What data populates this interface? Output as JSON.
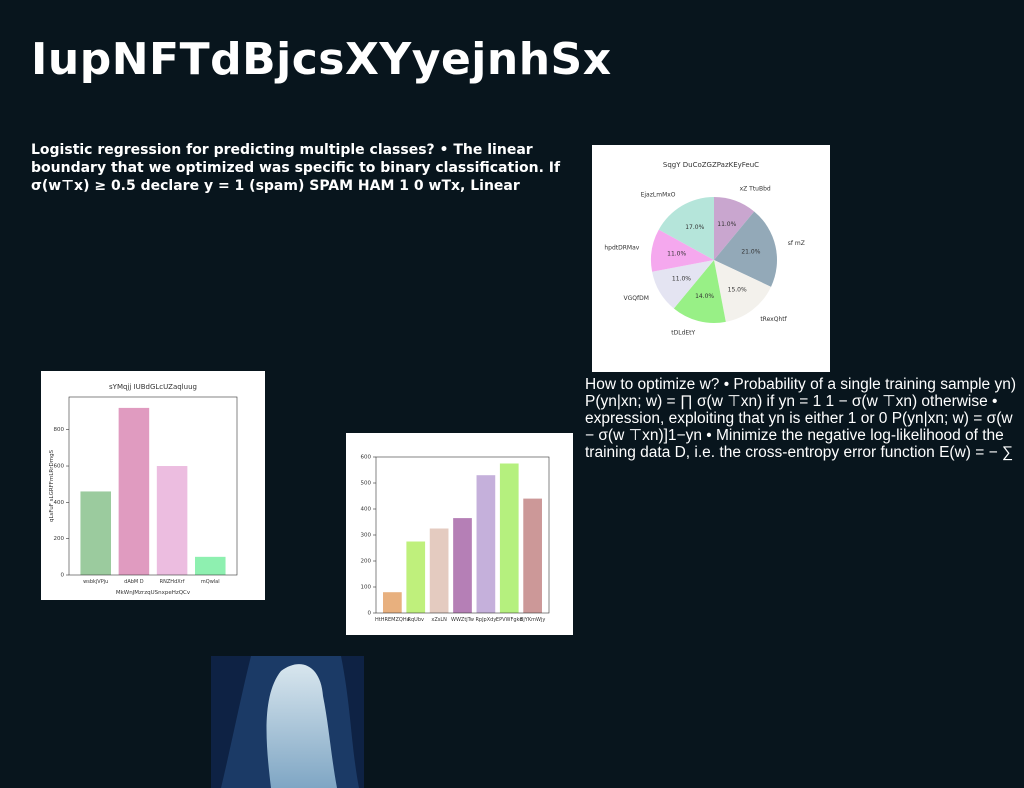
{
  "header": {
    "title": "IupNFTdBjcsXYyejnhSx"
  },
  "text": [
    "Logistic regression for predicting multiple classes? • The linear boundary that we optimized was specific to binary classification. If σ(w⊤x) ≥ 0.5 declare y = 1 (spam) SPAM HAM 1 0 wTx, Linear",
    "How to optimize w? • Probability of a single training sample yn) P(yn|xn; w) = ∏ σ(w ⊤xn) if yn = 1 1 − σ(w ⊤xn) otherwise • expression, exploiting that yn is either 1 or 0 P(yn|xn; w) = σ(w − σ(w ⊤xn)]1−yn • Minimize the negative log-likelihood of the training data D, i.e. the cross-entropy error function E(w) = − ∑"
  ],
  "chart_data": [
    {
      "type": "pie",
      "title": "SqgY DuCoZGZPazKEyFeuC",
      "categories": [
        "xZ TtuBbd",
        "sf mZ",
        "tRexQhtf",
        "tDLdEtY",
        "VGQfDM",
        "hpdtDRMav",
        "EjazLmMxO"
      ],
      "values": [
        11.0,
        21.0,
        15.0,
        14.0,
        11.0,
        11.0,
        17.0
      ],
      "value_labels": [
        "11.0%",
        "21.0%",
        "15.0%",
        "14.0%",
        "11.0%",
        "11.0%",
        "17.0%"
      ],
      "colors": [
        "#c9a6cf",
        "#93a9b8",
        "#f3f1ec",
        "#98f086",
        "#e4e4f2",
        "#f5a8ee",
        "#b5e5da"
      ]
    },
    {
      "type": "bar",
      "title": "sYMqjj IUBdGLcUZaqluug",
      "x_label": "MkWnJMzrzqUSnxpeHzQCv",
      "y_label": "qLsFuF sLGRFFmLRrDmgS",
      "categories": [
        "wsbkjVPju",
        "dAbM D",
        "RNZHdXrf",
        "mQwlal"
      ],
      "values": [
        460,
        920,
        600,
        100
      ],
      "colors": [
        "#9bcb9e",
        "#e09bc0",
        "#ecbde0",
        "#8ef0b0"
      ],
      "ylim": [
        0,
        980
      ],
      "yticks": [
        0,
        200,
        400,
        600,
        800
      ]
    },
    {
      "type": "bar",
      "categories": [
        "HtHREMZQHa",
        "RqUbv",
        "xZsLN",
        "WWZtjTw",
        "RpJpXdy",
        "EPVWFgkd",
        "BjYKmWjy"
      ],
      "values": [
        80,
        275,
        325,
        365,
        530,
        575,
        440
      ],
      "colors": [
        "#e8b07e",
        "#bff07c",
        "#e4cbc0",
        "#b57fb6",
        "#c5b0db",
        "#b5f07e",
        "#cc9898"
      ],
      "ylim": [
        0,
        600
      ],
      "yticks": [
        0,
        100,
        200,
        300,
        400,
        500,
        600
      ]
    }
  ]
}
